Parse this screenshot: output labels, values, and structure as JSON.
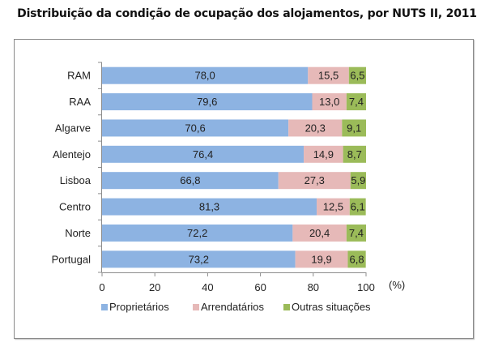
{
  "chart_data": {
    "type": "bar",
    "orientation": "horizontal",
    "stacked": true,
    "title": "Distribuição da condição de ocupação dos alojamentos, por NUTS II, 2011",
    "xlabel": "(%)",
    "ylabel": "",
    "xlim": [
      0,
      100
    ],
    "xticks": [
      0,
      20,
      40,
      60,
      80,
      100
    ],
    "xtick_labels": [
      "0",
      "20",
      "40",
      "60",
      "80",
      "100"
    ],
    "grid": false,
    "legend_position": "bottom",
    "categories": [
      "RAM",
      "RAA",
      "Algarve",
      "Alentejo",
      "Lisboa",
      "Centro",
      "Norte",
      "Portugal"
    ],
    "series": [
      {
        "name": "Proprietários",
        "color": "#8db3e2",
        "values": [
          78.0,
          79.6,
          70.6,
          76.4,
          66.8,
          81.3,
          72.2,
          73.2
        ],
        "labels": [
          "78,0",
          "79,6",
          "70,6",
          "76,4",
          "66,8",
          "81,3",
          "72,2",
          "73,2"
        ]
      },
      {
        "name": "Arrendatários",
        "color": "#e6b9b8",
        "values": [
          15.5,
          13.0,
          20.3,
          14.9,
          27.3,
          12.5,
          20.4,
          19.9
        ],
        "labels": [
          "15,5",
          "13,0",
          "20,3",
          "14,9",
          "27,3",
          "12,5",
          "20,4",
          "19,9"
        ]
      },
      {
        "name": "Outras situações",
        "color": "#9bbb59",
        "values": [
          6.5,
          7.4,
          9.1,
          8.7,
          5.9,
          6.1,
          7.4,
          6.8
        ],
        "labels": [
          "6,5",
          "7,4",
          "9,1",
          "8,7",
          "5,9",
          "6,1",
          "7,4",
          "6,8"
        ]
      }
    ]
  }
}
